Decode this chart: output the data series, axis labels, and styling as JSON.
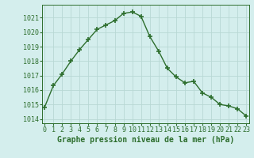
{
  "x": [
    0,
    1,
    2,
    3,
    4,
    5,
    6,
    7,
    8,
    9,
    10,
    11,
    12,
    13,
    14,
    15,
    16,
    17,
    18,
    19,
    20,
    21,
    22,
    23
  ],
  "y": [
    1014.8,
    1016.3,
    1017.1,
    1018.0,
    1018.8,
    1019.5,
    1020.2,
    1020.5,
    1020.8,
    1021.3,
    1021.4,
    1021.1,
    1019.7,
    1018.7,
    1017.5,
    1016.9,
    1016.5,
    1016.6,
    1015.8,
    1015.5,
    1015.0,
    1014.9,
    1014.7,
    1014.2
  ],
  "line_color": "#2d6e2d",
  "marker": "+",
  "marker_size": 5,
  "marker_lw": 1.2,
  "bg_color": "#d4eeed",
  "grid_color": "#b8d8d4",
  "xlabel": "Graphe pression niveau de la mer (hPa)",
  "xlabel_fontsize": 7,
  "xtick_labels": [
    "0",
    "1",
    "2",
    "3",
    "4",
    "5",
    "6",
    "7",
    "8",
    "9",
    "10",
    "11",
    "12",
    "13",
    "14",
    "15",
    "16",
    "17",
    "18",
    "19",
    "20",
    "21",
    "22",
    "23"
  ],
  "ytick_values": [
    1014,
    1015,
    1016,
    1017,
    1018,
    1019,
    1020,
    1021
  ],
  "ylim": [
    1013.7,
    1021.9
  ],
  "xlim": [
    -0.3,
    23.3
  ],
  "tick_fontsize": 6,
  "line_width": 1.0
}
